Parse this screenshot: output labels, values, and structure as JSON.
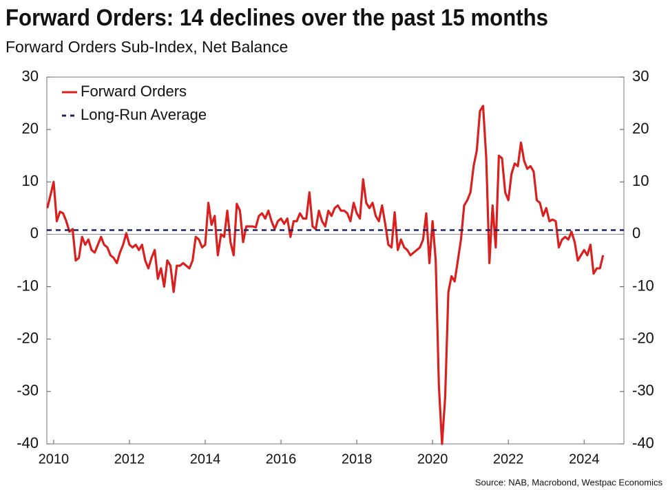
{
  "chart_data": {
    "type": "line",
    "title": "Forward Orders: 14 declines over the past 15 months",
    "subtitle": "Forward Orders Sub-Index, Net Balance",
    "source": "Source: NAB, Macrobond, Westpac Economics",
    "x": [
      2009.833,
      2009.917,
      2010.0,
      2010.083,
      2010.167,
      2010.25,
      2010.333,
      2010.417,
      2010.5,
      2010.583,
      2010.667,
      2010.75,
      2010.833,
      2010.917,
      2011.0,
      2011.083,
      2011.167,
      2011.25,
      2011.333,
      2011.417,
      2011.5,
      2011.583,
      2011.667,
      2011.75,
      2011.833,
      2011.917,
      2012.0,
      2012.083,
      2012.167,
      2012.25,
      2012.333,
      2012.417,
      2012.5,
      2012.583,
      2012.667,
      2012.75,
      2012.833,
      2012.917,
      2013.0,
      2013.083,
      2013.167,
      2013.25,
      2013.333,
      2013.417,
      2013.5,
      2013.583,
      2013.667,
      2013.75,
      2013.833,
      2013.917,
      2014.0,
      2014.083,
      2014.167,
      2014.25,
      2014.333,
      2014.417,
      2014.5,
      2014.583,
      2014.667,
      2014.75,
      2014.833,
      2014.917,
      2015.0,
      2015.083,
      2015.167,
      2015.25,
      2015.333,
      2015.417,
      2015.5,
      2015.583,
      2015.667,
      2015.75,
      2015.833,
      2015.917,
      2016.0,
      2016.083,
      2016.167,
      2016.25,
      2016.333,
      2016.417,
      2016.5,
      2016.583,
      2016.667,
      2016.75,
      2016.833,
      2016.917,
      2017.0,
      2017.083,
      2017.167,
      2017.25,
      2017.333,
      2017.417,
      2017.5,
      2017.583,
      2017.667,
      2017.75,
      2017.833,
      2017.917,
      2018.0,
      2018.083,
      2018.167,
      2018.25,
      2018.333,
      2018.417,
      2018.5,
      2018.583,
      2018.667,
      2018.75,
      2018.833,
      2018.917,
      2019.0,
      2019.083,
      2019.167,
      2019.25,
      2019.333,
      2019.417,
      2019.5,
      2019.583,
      2019.667,
      2019.75,
      2019.833,
      2019.917,
      2020.0,
      2020.083,
      2020.167,
      2020.25,
      2020.333,
      2020.417,
      2020.5,
      2020.583,
      2020.667,
      2020.75,
      2020.833,
      2020.917,
      2021.0,
      2021.083,
      2021.167,
      2021.25,
      2021.333,
      2021.417,
      2021.5,
      2021.583,
      2021.667,
      2021.75,
      2021.833,
      2021.917,
      2022.0,
      2022.083,
      2022.167,
      2022.25,
      2022.333,
      2022.417,
      2022.5,
      2022.583,
      2022.667,
      2022.75,
      2022.833,
      2022.917,
      2023.0,
      2023.083,
      2023.167,
      2023.25,
      2023.333,
      2023.417,
      2023.5,
      2023.583,
      2023.667,
      2023.75,
      2023.833,
      2023.917,
      2024.0,
      2024.083,
      2024.167,
      2024.25,
      2024.333,
      2024.417,
      2024.5
    ],
    "series": [
      {
        "name": "Forward Orders",
        "color": "#d9201f",
        "values": [
          5,
          7.5,
          10,
          2.5,
          4.3,
          4,
          2.5,
          0.5,
          1,
          -5,
          -4.5,
          -0.5,
          -2,
          -1,
          -3,
          -3.5,
          -2,
          -0.5,
          -2,
          -2.5,
          -4,
          -4.5,
          -5.5,
          -3.5,
          -2,
          0.2,
          -2,
          -2.5,
          -2,
          -3,
          -2,
          -5,
          -6.5,
          -4.5,
          -3,
          -8.5,
          -6.5,
          -10,
          -5,
          -6,
          -11,
          -6,
          -6,
          -5.5,
          -6,
          -6.5,
          -5,
          -0.5,
          -1,
          -2.5,
          -2,
          6,
          1.8,
          3.5,
          -4,
          0,
          -0.5,
          4.5,
          -1.5,
          -4,
          5.8,
          4.5,
          -1.5,
          1.5,
          1.5,
          1.5,
          1.3,
          3.5,
          4,
          3,
          4.5,
          2.5,
          1,
          2.5,
          3,
          2,
          3,
          -0.5,
          2.5,
          2.5,
          4,
          3,
          3,
          8,
          1.5,
          1,
          4.5,
          2.5,
          1.5,
          4.5,
          3.5,
          5,
          5.5,
          4.5,
          4.5,
          4,
          2.5,
          6,
          4,
          3,
          10.5,
          6,
          5,
          6,
          3.5,
          2.5,
          5.5,
          2,
          -2,
          -2.5,
          4.2,
          -3,
          -1,
          -2.5,
          -3,
          -4,
          -3.5,
          -3,
          -2.5,
          -1,
          4,
          -5.5,
          2.5,
          -5,
          -29,
          -40,
          -31,
          -11,
          -8,
          -9,
          -5,
          -1,
          5.5,
          6.5,
          8,
          13,
          16,
          23.5,
          24.5,
          14.5,
          -5.5,
          5.5,
          -2.5,
          15,
          14.5,
          8,
          6.5,
          11.5,
          13.5,
          13,
          17.5,
          14,
          12.5,
          13,
          12,
          6.5,
          6,
          3.5,
          5,
          2.5,
          2.8,
          2.5,
          -2.5,
          -1,
          -0.5,
          -1,
          0.5,
          -1.5,
          -5,
          -4,
          -3,
          -4,
          -2,
          -7.5,
          -6.5,
          -6.5,
          -4
        ]
      },
      {
        "name": "Long-Run Average",
        "color": "#1f2060",
        "dashed": true,
        "value": 0.8
      }
    ],
    "xlim": [
      2009.82,
      2025.05
    ],
    "xticks": [
      2010,
      2012,
      2014,
      2016,
      2018,
      2020,
      2022,
      2024
    ],
    "ylim": [
      -40,
      30
    ],
    "yticks": [
      -40,
      -30,
      -20,
      -10,
      0,
      10,
      20,
      30
    ],
    "legend": "upper left"
  }
}
